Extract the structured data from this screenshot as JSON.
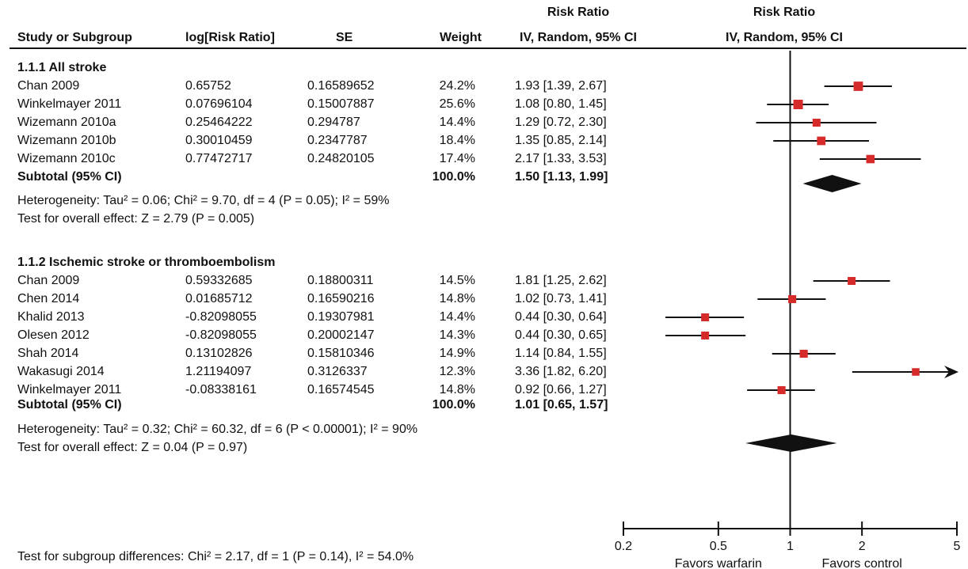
{
  "headers": {
    "study": "Study or Subgroup",
    "log_rr": "log[Risk Ratio]",
    "se": "SE",
    "weight": "Weight",
    "rr_title": "Risk Ratio",
    "rr_method": "IV, Random, 95% CI",
    "plot_title": "Risk Ratio",
    "plot_method": "IV, Random, 95% CI"
  },
  "subgroups": [
    {
      "title": "1.1.1 All stroke",
      "studies": [
        {
          "name": "Chan 2009",
          "log_rr": "0.65752",
          "se": "0.16589652",
          "weight": "24.2%",
          "ci_text": "1.93 [1.39, 2.67]"
        },
        {
          "name": "Winkelmayer 2011",
          "log_rr": "0.07696104",
          "se": "0.15007887",
          "weight": "25.6%",
          "ci_text": "1.08 [0.80, 1.45]"
        },
        {
          "name": "Wizemann 2010a",
          "log_rr": "0.25464222",
          "se": "0.294787",
          "weight": "14.4%",
          "ci_text": "1.29 [0.72, 2.30]"
        },
        {
          "name": "Wizemann 2010b",
          "log_rr": "0.30010459",
          "se": "0.2347787",
          "weight": "18.4%",
          "ci_text": "1.35 [0.85, 2.14]"
        },
        {
          "name": "Wizemann 2010c",
          "log_rr": "0.77472717",
          "se": "0.24820105",
          "weight": "17.4%",
          "ci_text": "2.17 [1.33, 3.53]"
        }
      ],
      "subtotal": {
        "label": "Subtotal (95% CI)",
        "weight": "100.0%",
        "ci_text": "1.50 [1.13, 1.99]"
      },
      "heterogeneity": "Heterogeneity: Tau² = 0.06; Chi² = 9.70, df = 4 (P = 0.05); I² = 59%",
      "overall": "Test for overall effect: Z = 2.79 (P = 0.005)"
    },
    {
      "title": "1.1.2 Ischemic stroke or thromboembolism",
      "studies": [
        {
          "name": "Chan 2009",
          "log_rr": "0.59332685",
          "se": "0.18800311",
          "weight": "14.5%",
          "ci_text": "1.81 [1.25, 2.62]"
        },
        {
          "name": "Chen 2014",
          "log_rr": "0.01685712",
          "se": "0.16590216",
          "weight": "14.8%",
          "ci_text": "1.02 [0.73, 1.41]"
        },
        {
          "name": "Khalid 2013",
          "log_rr": "-0.82098055",
          "se": "0.19307981",
          "weight": "14.4%",
          "ci_text": "0.44 [0.30, 0.64]"
        },
        {
          "name": "Olesen 2012",
          "log_rr": "-0.82098055",
          "se": "0.20002147",
          "weight": "14.3%",
          "ci_text": "0.44 [0.30, 0.65]"
        },
        {
          "name": "Shah 2014",
          "log_rr": "0.13102826",
          "se": "0.15810346",
          "weight": "14.9%",
          "ci_text": "1.14 [0.84, 1.55]"
        },
        {
          "name": "Wakasugi 2014",
          "log_rr": "1.21194097",
          "se": "0.3126337",
          "weight": "12.3%",
          "ci_text": "3.36 [1.82, 6.20]"
        },
        {
          "name": "Winkelmayer 2011",
          "log_rr": "-0.08338161",
          "se": "0.16574545",
          "weight": "14.8%",
          "ci_text": "0.92 [0.66, 1.27]"
        }
      ],
      "subtotal": {
        "label": "Subtotal (95% CI)",
        "weight": "100.0%",
        "ci_text": "1.01 [0.65, 1.57]"
      },
      "heterogeneity": "Heterogeneity: Tau² = 0.32; Chi² = 60.32, df = 6 (P < 0.00001); I² = 90%",
      "overall": "Test for overall effect: Z = 0.04 (P = 0.97)"
    }
  ],
  "subgroup_differences": "Test for subgroup differences: Chi² = 2.17, df = 1 (P = 0.14), I² = 54.0%",
  "axis": {
    "favors_left": "Favors warfarin",
    "favors_right": "Favors control"
  },
  "colors": {
    "marker": "#d62b2b",
    "ink": "#111111"
  },
  "chart_data": {
    "type": "forest",
    "scale": "log",
    "xlim": [
      0.2,
      5
    ],
    "ticks": [
      0.2,
      0.5,
      1,
      2,
      5
    ],
    "tick_labels": [
      "0.2",
      "0.5",
      "1",
      "2",
      "5"
    ],
    "reference_line": 1,
    "arrow_clip": "upper CI beyond axis maximum drawn as arrow",
    "subgroups": [
      {
        "name": "1.1.1 All stroke",
        "studies": [
          {
            "label": "Chan 2009",
            "rr": 1.93,
            "lo": 1.39,
            "hi": 2.67,
            "weight": 24.2
          },
          {
            "label": "Winkelmayer 2011",
            "rr": 1.08,
            "lo": 0.8,
            "hi": 1.45,
            "weight": 25.6
          },
          {
            "label": "Wizemann 2010a",
            "rr": 1.29,
            "lo": 0.72,
            "hi": 2.3,
            "weight": 14.4
          },
          {
            "label": "Wizemann 2010b",
            "rr": 1.35,
            "lo": 0.85,
            "hi": 2.14,
            "weight": 18.4
          },
          {
            "label": "Wizemann 2010c",
            "rr": 2.17,
            "lo": 1.33,
            "hi": 3.53,
            "weight": 17.4
          }
        ],
        "pooled": {
          "rr": 1.5,
          "lo": 1.13,
          "hi": 1.99
        }
      },
      {
        "name": "1.1.2 Ischemic stroke or thromboembolism",
        "studies": [
          {
            "label": "Chan 2009",
            "rr": 1.81,
            "lo": 1.25,
            "hi": 2.62,
            "weight": 14.5
          },
          {
            "label": "Chen 2014",
            "rr": 1.02,
            "lo": 0.73,
            "hi": 1.41,
            "weight": 14.8
          },
          {
            "label": "Khalid 2013",
            "rr": 0.44,
            "lo": 0.3,
            "hi": 0.64,
            "weight": 14.4
          },
          {
            "label": "Olesen 2012",
            "rr": 0.44,
            "lo": 0.3,
            "hi": 0.65,
            "weight": 14.3
          },
          {
            "label": "Shah 2014",
            "rr": 1.14,
            "lo": 0.84,
            "hi": 1.55,
            "weight": 14.9
          },
          {
            "label": "Wakasugi 2014",
            "rr": 3.36,
            "lo": 1.82,
            "hi": 6.2,
            "weight": 12.3
          },
          {
            "label": "Winkelmayer 2011",
            "rr": 0.92,
            "lo": 0.66,
            "hi": 1.27,
            "weight": 14.8
          }
        ],
        "pooled": {
          "rr": 1.01,
          "lo": 0.65,
          "hi": 1.57
        }
      }
    ]
  }
}
